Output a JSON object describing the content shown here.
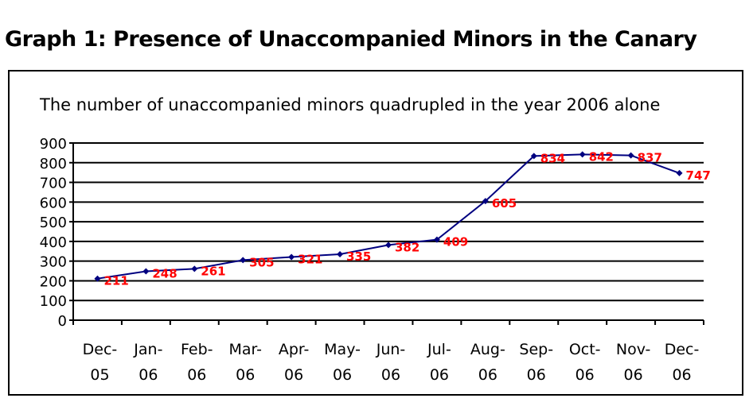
{
  "chart_data": {
    "type": "line",
    "title": "Graph 1: Presence of Unaccompanied Minors in the Canary",
    "subtitle": "The number of unaccompanied minors quadrupled in the year 2006 alone",
    "categories": [
      "Dec-\n05",
      "Jan-\n06",
      "Feb-\n06",
      "Mar-\n06",
      "Apr-\n06",
      "May-\n06",
      "Jun-\n06",
      "Jul-\n06",
      "Aug-\n06",
      "Sep-\n06",
      "Oct-\n06",
      "Nov-\n06",
      "Dec-\n06"
    ],
    "series": [
      {
        "name": "Unaccompanied minors",
        "color": "#000080",
        "values": [
          211,
          248,
          261,
          305,
          321,
          335,
          382,
          409,
          605,
          834,
          842,
          837,
          747
        ]
      }
    ],
    "data_label_color": "#ff0000",
    "ylim": [
      0,
      900
    ],
    "yticks": [
      0,
      100,
      200,
      300,
      400,
      500,
      600,
      700,
      800,
      900
    ],
    "grid": true
  }
}
